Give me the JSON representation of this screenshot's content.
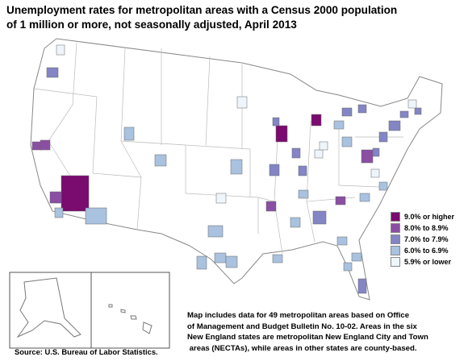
{
  "title": [
    "Unemployment rates for metropolitan areas with a Census 2000 population",
    "of 1 million or more, not seasonally adjusted, April 2013"
  ],
  "legend": [
    {
      "label": "9.0% or higher",
      "color": "#7a0b6f"
    },
    {
      "label": "8.0% to 8.9%",
      "color": "#8a4fa3"
    },
    {
      "label": "7.0% to 7.9%",
      "color": "#8485c5"
    },
    {
      "label": "6.0% to 6.9%",
      "color": "#a8c2df"
    },
    {
      "label": "5.9% or lower",
      "color": "#eef6fb"
    }
  ],
  "note": [
    "Map includes data for 49 metropolitan areas based on Office",
    "of Management and Budget Bulletin No. 10-02. Areas in the six",
    "New England states are metropolitan New England City and Town",
    " areas (NECTAs), while areas in other states are county-based."
  ],
  "source": "Source:  U.S. Bureau of Labor Statistics."
}
